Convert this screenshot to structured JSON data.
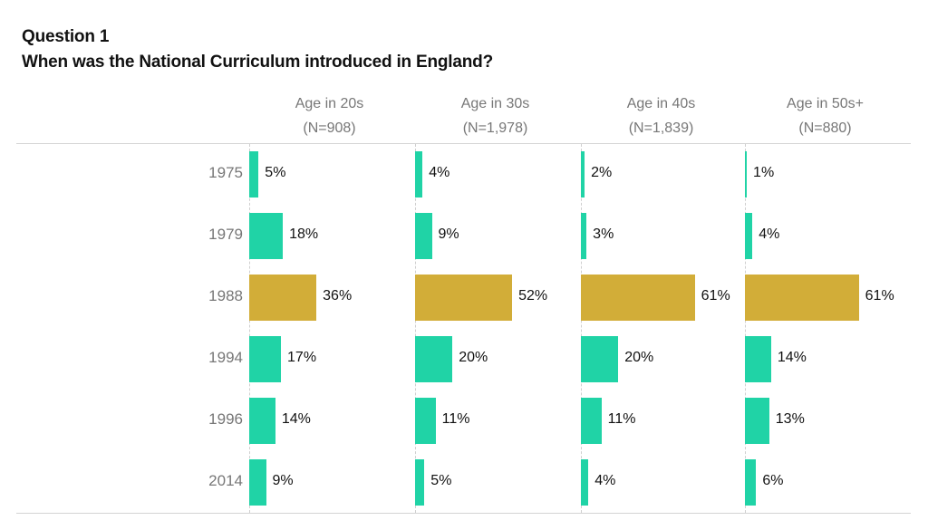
{
  "title_line1": "Question 1",
  "title_line2": "When was the National Curriculum introduced in England?",
  "colors": {
    "default": "#20D3A6",
    "highlight": "#D2AD38"
  },
  "chart_data": {
    "type": "bar",
    "orientation": "horizontal",
    "title": "Question 1 When was the National Curriculum introduced in England?",
    "categories": [
      "1975",
      "1979",
      "1988",
      "1994",
      "1996",
      "2014"
    ],
    "highlight_category": "1988",
    "unit": "%",
    "xlim": [
      0,
      70
    ],
    "series": [
      {
        "name": "Age in 20s",
        "n_label": "(N=908)",
        "values": [
          5,
          18,
          36,
          17,
          14,
          9
        ],
        "labels": [
          "5%",
          "18%",
          "36%",
          "17%",
          "14%",
          "9%"
        ]
      },
      {
        "name": "Age in 30s",
        "n_label": "(N=1,978)",
        "values": [
          4,
          9,
          52,
          20,
          11,
          5
        ],
        "labels": [
          "4%",
          "9%",
          "52%",
          "20%",
          "11%",
          "5%"
        ]
      },
      {
        "name": "Age in 40s",
        "n_label": "(N=1,839)",
        "values": [
          2,
          3,
          61,
          20,
          11,
          4
        ],
        "labels": [
          "2%",
          "3%",
          "61%",
          "20%",
          "11%",
          "4%"
        ]
      },
      {
        "name": "Age in 50s+",
        "n_label": "(N=880)",
        "values": [
          1,
          4,
          61,
          14,
          13,
          6
        ],
        "labels": [
          "1%",
          "4%",
          "61%",
          "14%",
          "13%",
          "6%"
        ]
      }
    ],
    "grid": false,
    "legend": "none"
  }
}
